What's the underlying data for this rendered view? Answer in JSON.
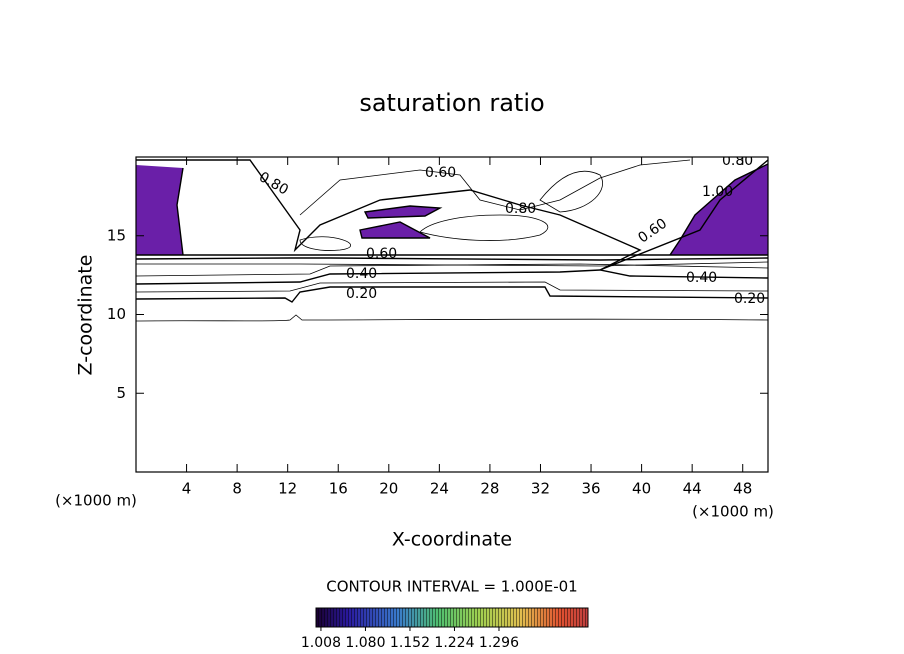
{
  "chart_data": {
    "type": "contour",
    "title": "saturation ratio",
    "xlabel": "X-coordinate",
    "ylabel": "Z-coordinate",
    "x_unit": "(×1000 m)",
    "y_unit": "(×1000 m)",
    "xlim": [
      0,
      50
    ],
    "ylim": [
      0,
      20
    ],
    "xticks": [
      4,
      8,
      12,
      16,
      20,
      24,
      28,
      32,
      36,
      40,
      44,
      48
    ],
    "yticks": [
      5,
      10,
      15
    ],
    "contour_levels": [
      {
        "value": 0.2,
        "label": "0.20"
      },
      {
        "value": 0.4,
        "label": "0.40"
      },
      {
        "value": 0.6,
        "label": "0.60"
      },
      {
        "value": 0.8,
        "label": "0.80"
      },
      {
        "value": 1.0,
        "label": "1.00"
      }
    ],
    "contour_interval_text": "CONTOUR INTERVAL = 1.000E-01",
    "fill_color": "#6a1fa8",
    "colorbar": {
      "lim": [
        1.0,
        1.44
      ],
      "ticks": [
        1.008,
        {
          "value": 1.08,
          "label": "1.080"
        },
        1.152,
        1.224,
        1.296
      ]
    }
  }
}
